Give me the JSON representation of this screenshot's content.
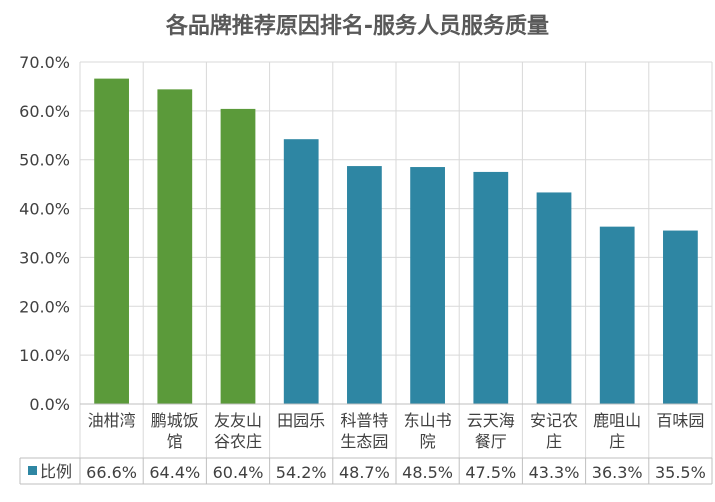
{
  "chart_data": {
    "type": "bar",
    "title": "各品牌推荐原因排名-服务人员服务质量",
    "categories": [
      "油柑湾",
      "鹏城饭馆",
      "友友山谷农庄",
      "田园乐",
      "科普特生态园",
      "东山书院",
      "云天海餐厅",
      "安记农庄",
      "鹿咀山庄",
      "百味园"
    ],
    "series": [
      {
        "name": "比例",
        "values": [
          66.6,
          64.4,
          60.4,
          54.2,
          48.7,
          48.5,
          47.5,
          43.3,
          36.3,
          35.5
        ],
        "labels": [
          "66.6%",
          "64.4%",
          "60.4%",
          "54.2%",
          "48.7%",
          "48.5%",
          "47.5%",
          "43.3%",
          "36.3%",
          "35.5%"
        ]
      }
    ],
    "bar_colors": [
      "#5b9a3a",
      "#5b9a3a",
      "#5b9a3a",
      "#2e86a3",
      "#2e86a3",
      "#2e86a3",
      "#2e86a3",
      "#2e86a3",
      "#2e86a3",
      "#2e86a3"
    ],
    "legend_color": "#2e86a3",
    "ylim": [
      0,
      70
    ],
    "yticks": [
      0,
      10,
      20,
      30,
      40,
      50,
      60,
      70
    ],
    "ytick_labels": [
      "0.0%",
      "10.0%",
      "20.0%",
      "30.0%",
      "40.0%",
      "50.0%",
      "60.0%",
      "70.0%"
    ],
    "grid": true,
    "legend": "data-table"
  }
}
